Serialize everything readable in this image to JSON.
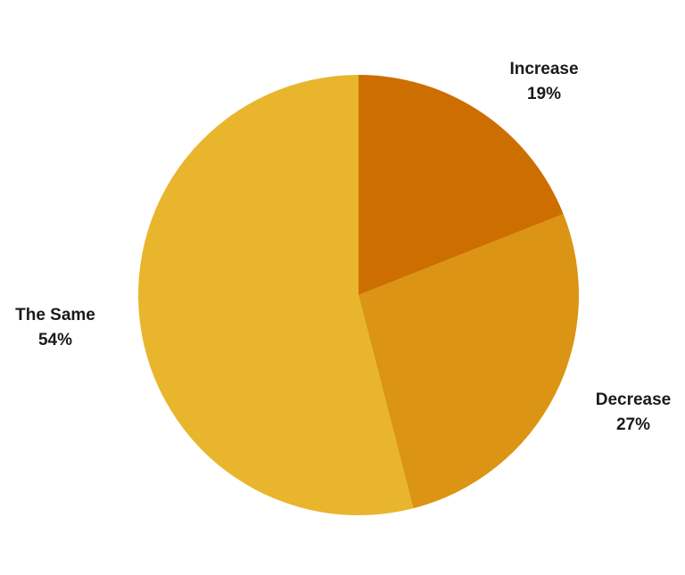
{
  "chart_data": {
    "type": "pie",
    "title": "",
    "slices": [
      {
        "label": "Increase",
        "value": 19,
        "value_label": "19%",
        "color": "#CC6F00"
      },
      {
        "label": "Decrease",
        "value": 27,
        "value_label": "27%",
        "color": "#DB9413"
      },
      {
        "label": "The Same",
        "value": 54,
        "value_label": "54%",
        "color": "#E8B52C"
      }
    ],
    "start_angle": "12 o'clock",
    "direction": "clockwise",
    "legend": "none",
    "labels": "outside"
  }
}
